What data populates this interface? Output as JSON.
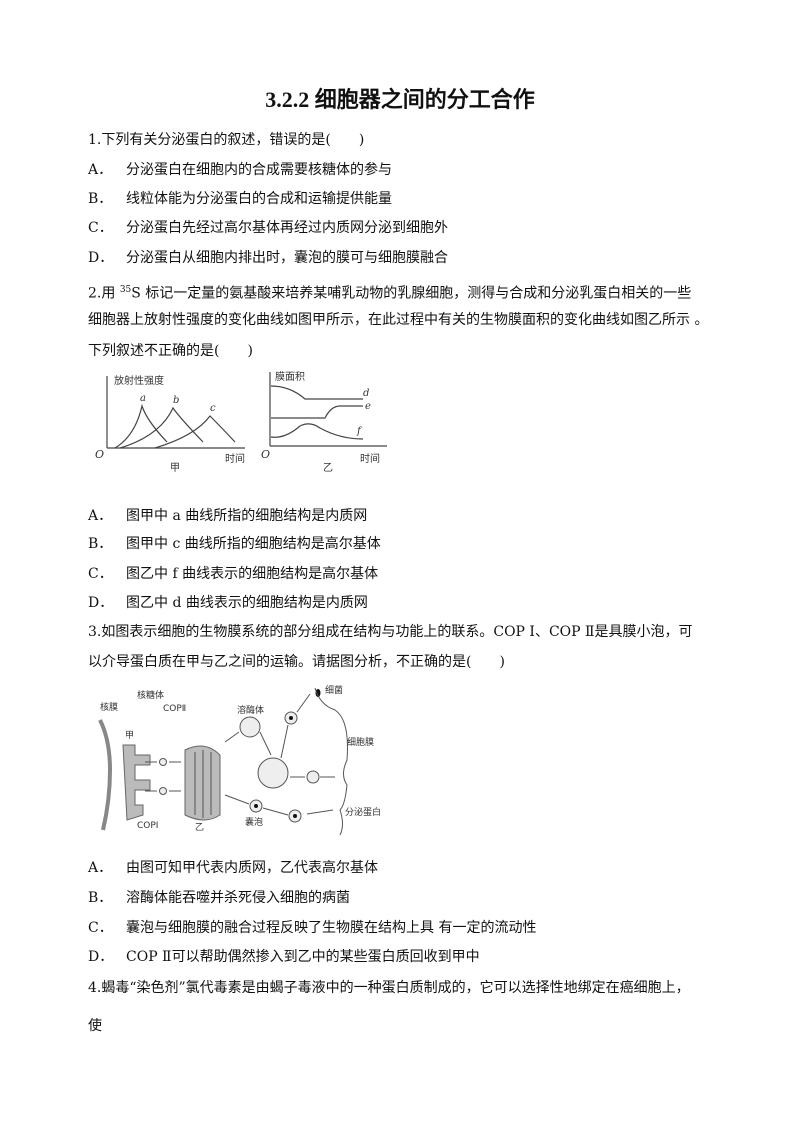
{
  "title": "3.2.2  细胞器之间的分工合作",
  "questions": [
    {
      "stem": [
        "1.下列有关分泌蛋白的叙述，错误的是(　　)"
      ],
      "options": [
        {
          "label": "A．",
          "text": "分泌蛋白在细胞内的合成需要核糖体的参与"
        },
        {
          "label": "B．",
          "text": "线粒体能为分泌蛋白的合成和运输提供能量"
        },
        {
          "label": "C．",
          "text": "分泌蛋白先经过高尔基体再经过内质网分泌到细胞外"
        },
        {
          "label": "D．",
          "text": "分泌蛋白从细胞内排出时，囊泡的膜可与细胞膜融合"
        }
      ]
    },
    {
      "stem_prefix": "2.用 ",
      "stem_sup": "35",
      "stem": [
        "S 标记一定量的氨基酸来培养某哺乳动物的乳腺细胞，测得与合成和分泌乳蛋白相关的一些",
        "细胞器上放射性强度的变化曲线如图甲所示，在此过程中有关的生物膜面积的变化曲线如图乙所示 。",
        "下列叙述不正确的是(　　)"
      ],
      "figure": {
        "jia": {
          "ylabel": "放射性强度",
          "xlabel": "时间",
          "origin": "O",
          "caption": "甲",
          "curves": [
            "a",
            "b",
            "c"
          ]
        },
        "yi": {
          "ylabel": "膜面积",
          "xlabel": "时间",
          "origin": "O",
          "caption": "乙",
          "curves": [
            "d",
            "e",
            "f"
          ]
        }
      },
      "options": [
        {
          "label": "A．",
          "text": "图甲中 a 曲线所指的细胞结构是内质网"
        },
        {
          "label": "B．",
          "text": "图甲中 c 曲线所指的细胞结构是高尔基体"
        },
        {
          "label": "C．",
          "text": "图乙中 f 曲线表示的细胞结构是高尔基体"
        },
        {
          "label": "D．",
          "text": "图乙中 d 曲线表示的细胞结构是内质网"
        }
      ]
    },
    {
      "stem": [
        "3.如图表示细胞的生物膜系统的部分组成在结构与功能上的联系。COP Ⅰ、COP Ⅱ是具膜小泡，可",
        "以介导蛋白质在甲与乙之间的运输。请据图分析，不正确的是(　　)"
      ],
      "figure": {
        "labels": {
          "nuclear_membrane": "核膜",
          "ribosome": "核糖体",
          "copII": "COPⅡ",
          "jia": "甲",
          "copI": "COPⅠ",
          "yi": "乙",
          "lysosome": "溶酶体",
          "bacteria": "细菌",
          "cell_membrane": "细胞膜",
          "vesicle": "囊泡",
          "secretory_protein": "分泌蛋白"
        }
      },
      "options": [
        {
          "label": "A．",
          "text": "由图可知甲代表内质网，乙代表高尔基体"
        },
        {
          "label": "B．",
          "text": "溶酶体能吞噬并杀死侵入细胞的病菌"
        },
        {
          "label": "C．",
          "text": "囊泡与细胞膜的融合过程反映了生物膜在结构上具 有一定的流动性"
        },
        {
          "label": "D．",
          "text": "COP Ⅱ可以帮助偶然掺入到乙中的某些蛋白质回收到甲中"
        }
      ]
    },
    {
      "stem": [
        "4.蝎毒“染色剂”氯代毒素是由蝎子毒液中的一种蛋白质制成的，它可以选择性地绑定在癌细胞上，",
        "使"
      ]
    }
  ]
}
